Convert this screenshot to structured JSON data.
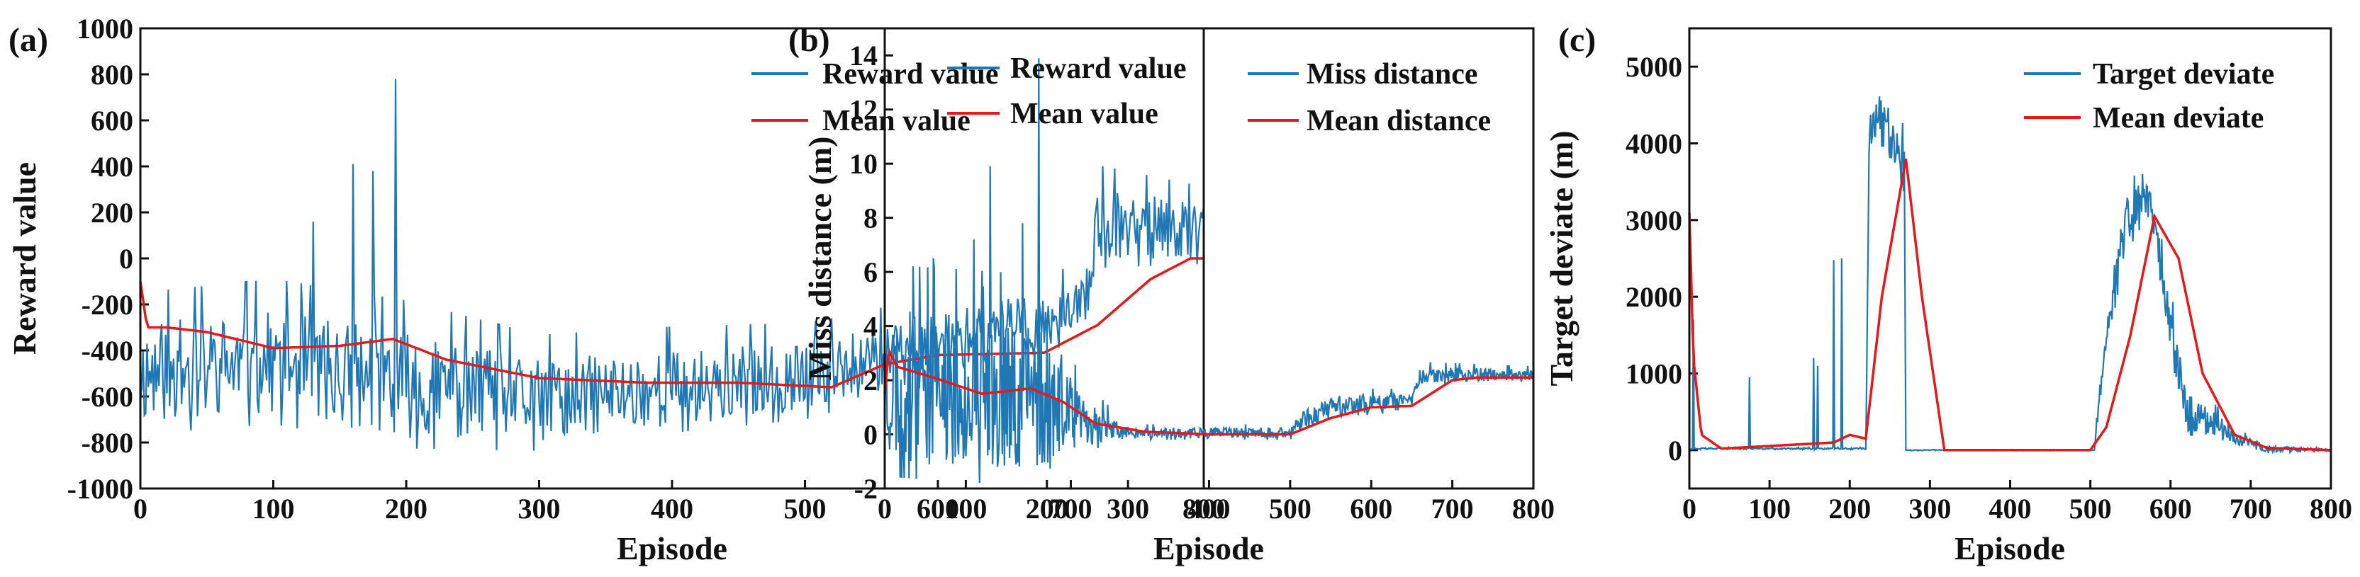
{
  "colors": {
    "raw": "#1f77b4",
    "mean": "#e31a1c",
    "axis": "#111111"
  },
  "chart_data": [
    {
      "type": "line",
      "panel_label": "(a)",
      "xlabel": "Episode",
      "ylabel": "Reward value",
      "xlim": [
        0,
        800
      ],
      "ylim": [
        -1000,
        1000
      ],
      "xticks": [
        0,
        100,
        200,
        300,
        400,
        500,
        600,
        700,
        800
      ],
      "xtick_labels": [
        "0",
        "100",
        "200",
        "300",
        "400",
        "500",
        "600",
        "700",
        "800"
      ],
      "yticks": [
        -1000,
        -800,
        -600,
        -400,
        -200,
        0,
        200,
        400,
        600,
        800,
        1000
      ],
      "ytick_labels": [
        "-1000",
        "-800",
        "-600",
        "-400",
        "-200",
        "0",
        "200",
        "400",
        "600",
        "800",
        "1000"
      ],
      "legend": [
        {
          "label": "Reward value",
          "color": "#1f77b4"
        },
        {
          "label": "Mean value",
          "color": "#e31a1c"
        }
      ],
      "series": [
        {
          "name": "Reward value",
          "kind": "noisy",
          "base": [
            [
              0,
              -500
            ],
            [
              100,
              -450
            ],
            [
              200,
              -550
            ],
            [
              300,
              -620
            ],
            [
              400,
              -560
            ],
            [
              500,
              -520
            ],
            [
              600,
              -380
            ],
            [
              700,
              -230
            ],
            [
              710,
              -200
            ],
            [
              720,
              150
            ],
            [
              800,
              120
            ]
          ],
          "amp": [
            [
              0,
              220
            ],
            [
              200,
              230
            ],
            [
              300,
              180
            ],
            [
              500,
              150
            ],
            [
              700,
              120
            ],
            [
              710,
              120
            ],
            [
              720,
              160
            ],
            [
              800,
              120
            ]
          ],
          "spikes": [
            [
              160,
              410
            ],
            [
              175,
              380
            ],
            [
              192,
              780
            ],
            [
              130,
              160
            ],
            [
              650,
              -900
            ],
            [
              520,
              -260
            ]
          ],
          "seed": 11
        },
        {
          "name": "Mean value",
          "kind": "smooth",
          "points": [
            [
              0,
              -100
            ],
            [
              5,
              -300
            ],
            [
              20,
              -300
            ],
            [
              50,
              -320
            ],
            [
              100,
              -390
            ],
            [
              150,
              -380
            ],
            [
              190,
              -350
            ],
            [
              230,
              -440
            ],
            [
              300,
              -520
            ],
            [
              380,
              -540
            ],
            [
              450,
              -540
            ],
            [
              520,
              -560
            ],
            [
              560,
              -460
            ],
            [
              600,
              -420
            ],
            [
              680,
              -410
            ],
            [
              720,
              -290
            ],
            [
              760,
              -90
            ],
            [
              790,
              0
            ],
            [
              800,
              0
            ]
          ]
        }
      ]
    },
    {
      "type": "line",
      "panel_label": "(b)",
      "xlabel": "Episode",
      "ylabel": "Miss distance (m)",
      "xlim": [
        0,
        800
      ],
      "ylim": [
        -2,
        15
      ],
      "xticks": [
        0,
        100,
        200,
        300,
        400,
        500,
        600,
        700,
        800
      ],
      "xtick_labels": [
        "0",
        "100",
        "200",
        "300",
        "400",
        "500",
        "600",
        "700",
        "800"
      ],
      "yticks": [
        -2,
        0,
        2,
        4,
        6,
        8,
        10,
        12,
        14
      ],
      "ytick_labels": [
        "-2",
        "0",
        "2",
        "4",
        "6",
        "8",
        "10",
        "12",
        "14"
      ],
      "legend": [
        {
          "label": "Reward value",
          "color": "#1f77b4"
        },
        {
          "label": "Mean value",
          "color": "#e31a1c"
        },
        {
          "label": "Miss distance",
          "color": "#1f77b4"
        },
        {
          "label": "Mean distance",
          "color": "#e31a1c"
        }
      ],
      "series": [
        {
          "name": "Miss distance",
          "kind": "noisy",
          "base": [
            [
              0,
              1.8
            ],
            [
              100,
              1.6
            ],
            [
              200,
              1.4
            ],
            [
              240,
              0.5
            ],
            [
              300,
              0.05
            ],
            [
              500,
              0.05
            ],
            [
              520,
              0.6
            ],
            [
              560,
              1.1
            ],
            [
              650,
              1.2
            ],
            [
              660,
              2.2
            ],
            [
              800,
              2.2
            ]
          ],
          "amp": [
            [
              0,
              2.8
            ],
            [
              200,
              2.8
            ],
            [
              240,
              1.0
            ],
            [
              300,
              0.2
            ],
            [
              500,
              0.2
            ],
            [
              520,
              0.4
            ],
            [
              650,
              0.3
            ],
            [
              660,
              0.3
            ],
            [
              800,
              0.2
            ]
          ],
          "spikes": [
            [
              130,
              9.9
            ],
            [
              190,
              13.9
            ],
            [
              60,
              6.5
            ],
            [
              110,
              7.2
            ],
            [
              170,
              7.8
            ]
          ],
          "seed": 23
        },
        {
          "name": "Mean distance",
          "kind": "smooth",
          "points": [
            [
              0,
              1.5
            ],
            [
              5,
              3.1
            ],
            [
              15,
              2.5
            ],
            [
              60,
              2.1
            ],
            [
              120,
              1.5
            ],
            [
              180,
              1.7
            ],
            [
              220,
              1.2
            ],
            [
              260,
              0.4
            ],
            [
              320,
              0.1
            ],
            [
              400,
              0.0
            ],
            [
              500,
              0.0
            ],
            [
              550,
              0.6
            ],
            [
              600,
              1.0
            ],
            [
              650,
              1.05
            ],
            [
              700,
              2.0
            ],
            [
              730,
              2.1
            ],
            [
              800,
              2.1
            ]
          ]
        }
      ]
    },
    {
      "type": "line",
      "panel_label": "(c)",
      "xlabel": "Episode",
      "ylabel": "Target deviate (m)",
      "xlim": [
        0,
        800
      ],
      "ylim": [
        -500,
        5500
      ],
      "xticks": [
        0,
        100,
        200,
        300,
        400,
        500,
        600,
        700,
        800
      ],
      "xtick_labels": [
        "0",
        "100",
        "200",
        "300",
        "400",
        "500",
        "600",
        "700",
        "800"
      ],
      "yticks": [
        0,
        1000,
        2000,
        3000,
        4000,
        5000
      ],
      "ytick_labels": [
        "0",
        "1000",
        "2000",
        "3000",
        "4000",
        "5000"
      ],
      "legend": [
        {
          "label": "Target deviate",
          "color": "#1f77b4"
        },
        {
          "label": "Mean deviate",
          "color": "#e31a1c"
        }
      ],
      "series": [
        {
          "name": "Target deviate",
          "kind": "noisy",
          "base": [
            [
              0,
              20
            ],
            [
              220,
              20
            ],
            [
              225,
              4500
            ],
            [
              260,
              4000
            ],
            [
              268,
              3700
            ],
            [
              270,
              0
            ],
            [
              505,
              0
            ],
            [
              520,
              1600
            ],
            [
              545,
              3000
            ],
            [
              575,
              3300
            ],
            [
              590,
              2200
            ],
            [
              620,
              500
            ],
            [
              680,
              200
            ],
            [
              720,
              20
            ],
            [
              800,
              0
            ]
          ],
          "amp": [
            [
              0,
              10
            ],
            [
              220,
              10
            ],
            [
              225,
              400
            ],
            [
              268,
              300
            ],
            [
              270,
              5
            ],
            [
              505,
              5
            ],
            [
              520,
              300
            ],
            [
              600,
              300
            ],
            [
              640,
              200
            ],
            [
              720,
              50
            ],
            [
              800,
              10
            ]
          ],
          "spikes": [
            [
              5,
              1700
            ],
            [
              75,
              950
            ],
            [
              155,
              1200
            ],
            [
              180,
              2480
            ],
            [
              190,
              2500
            ],
            [
              160,
              1100
            ],
            [
              565,
              3600
            ]
          ],
          "seed": 37
        },
        {
          "name": "Mean deviate",
          "kind": "smooth",
          "points": [
            [
              0,
              3100
            ],
            [
              5,
              1200
            ],
            [
              15,
              200
            ],
            [
              40,
              20
            ],
            [
              180,
              100
            ],
            [
              200,
              200
            ],
            [
              220,
              150
            ],
            [
              240,
              2000
            ],
            [
              270,
              3800
            ],
            [
              290,
              2000
            ],
            [
              318,
              0
            ],
            [
              500,
              0
            ],
            [
              520,
              300
            ],
            [
              550,
              1500
            ],
            [
              580,
              3050
            ],
            [
              610,
              2500
            ],
            [
              640,
              1000
            ],
            [
              680,
              200
            ],
            [
              720,
              30
            ],
            [
              800,
              0
            ]
          ]
        }
      ]
    }
  ]
}
